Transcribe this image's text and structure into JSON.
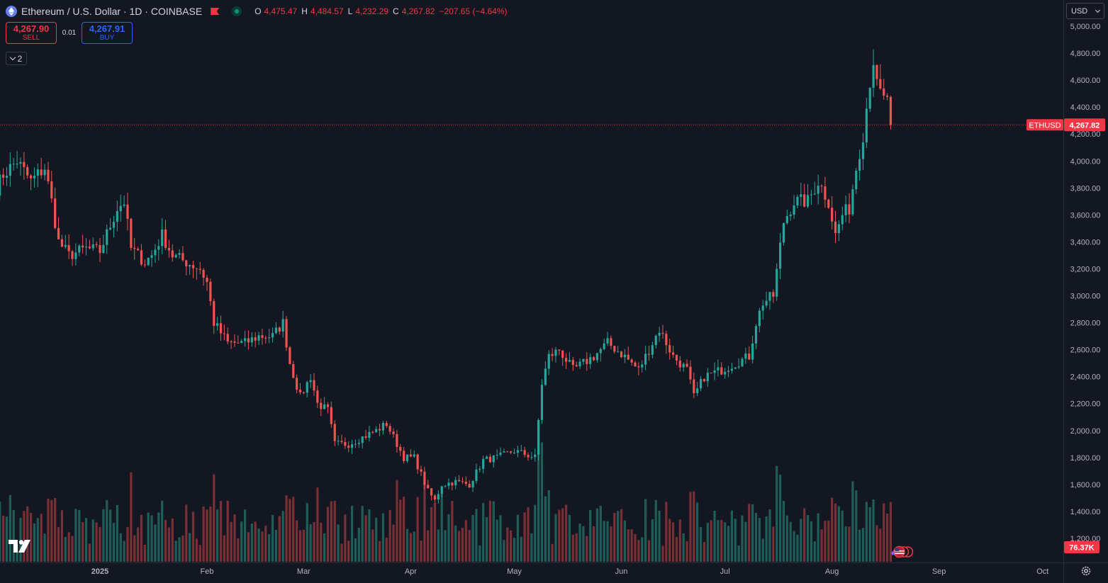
{
  "header": {
    "title": "Ethereum / U.S. Dollar · 1D · COINBASE",
    "symbol_icon": "ethereum-icon",
    "ohlc": [
      {
        "key": "O",
        "value": "4,475.47"
      },
      {
        "key": "H",
        "value": "4,484.57"
      },
      {
        "key": "L",
        "value": "4,232.29"
      },
      {
        "key": "C",
        "value": "4,267.82"
      }
    ],
    "change": "−207.65 (−4.64%)"
  },
  "trade": {
    "sell_price": "4,267.90",
    "sell_label": "SELL",
    "spread": "0.01",
    "buy_price": "4,267.91",
    "buy_label": "BUY"
  },
  "indicators_toggle": "2",
  "currency": "USD",
  "colors": {
    "background": "#131722",
    "up": "#26a69a",
    "down": "#ef5350",
    "up_volume": "#1f5e58",
    "down_volume": "#7a2f35",
    "grid": "#1e222d",
    "text": "#b2b5be"
  },
  "chart_data": {
    "type": "candlestick",
    "title": "Ethereum / U.S. Dollar · 1D · COINBASE",
    "series_name": "ETHUSD",
    "last_price_label": "ETHUSD",
    "last_price": 4267.82,
    "last_price_text": "4,267.82",
    "volume_label": "76.37K",
    "y_scale": "linear",
    "ylim": [
      1050,
      5000
    ],
    "grid": false,
    "y_ticks": [
      "5,000.00",
      "4,800.00",
      "4,600.00",
      "4,400.00",
      "4,200.00",
      "4,000.00",
      "3,800.00",
      "3,600.00",
      "3,400.00",
      "3,200.00",
      "3,000.00",
      "2,800.00",
      "2,600.00",
      "2,400.00",
      "2,200.00",
      "2,000.00",
      "1,800.00",
      "1,600.00",
      "1,400.00",
      "1,200.00"
    ],
    "x_ticks": [
      {
        "label": "2025",
        "date": "2025-01-01"
      },
      {
        "label": "Feb",
        "date": "2025-02-01"
      },
      {
        "label": "Mar",
        "date": "2025-03-01"
      },
      {
        "label": "Apr",
        "date": "2025-04-01"
      },
      {
        "label": "May",
        "date": "2025-05-01"
      },
      {
        "label": "Jun",
        "date": "2025-06-01"
      },
      {
        "label": "Jul",
        "date": "2025-07-01"
      },
      {
        "label": "Aug",
        "date": "2025-08-01"
      },
      {
        "label": "Sep",
        "date": "2025-09-01"
      },
      {
        "label": "Oct",
        "date": "2025-10-01"
      }
    ],
    "close_anchors": [
      [
        "2024-12-01",
        3750
      ],
      [
        "2024-12-04",
        3900
      ],
      [
        "2024-12-08",
        4000
      ],
      [
        "2024-12-12",
        3850
      ],
      [
        "2024-12-16",
        3950
      ],
      [
        "2024-12-18",
        3700
      ],
      [
        "2024-12-20",
        3400
      ],
      [
        "2024-12-23",
        3300
      ],
      [
        "2024-12-28",
        3350
      ],
      [
        "2025-01-01",
        3330
      ],
      [
        "2025-01-06",
        3650
      ],
      [
        "2025-01-08",
        3700
      ],
      [
        "2025-01-10",
        3350
      ],
      [
        "2025-01-14",
        3250
      ],
      [
        "2025-01-16",
        3300
      ],
      [
        "2025-01-19",
        3450
      ],
      [
        "2025-01-22",
        3300
      ],
      [
        "2025-01-26",
        3250
      ],
      [
        "2025-01-30",
        3200
      ],
      [
        "2025-02-01",
        3100
      ],
      [
        "2025-02-03",
        2800
      ],
      [
        "2025-02-07",
        2650
      ],
      [
        "2025-02-12",
        2650
      ],
      [
        "2025-02-16",
        2700
      ],
      [
        "2025-02-20",
        2700
      ],
      [
        "2025-02-23",
        2800
      ],
      [
        "2025-02-25",
        2500
      ],
      [
        "2025-02-28",
        2250
      ],
      [
        "2025-03-03",
        2400
      ],
      [
        "2025-03-05",
        2200
      ],
      [
        "2025-03-08",
        2150
      ],
      [
        "2025-03-10",
        1900
      ],
      [
        "2025-03-14",
        1900
      ],
      [
        "2025-03-18",
        1950
      ],
      [
        "2025-03-22",
        2000
      ],
      [
        "2025-03-25",
        2050
      ],
      [
        "2025-03-28",
        1900
      ],
      [
        "2025-03-30",
        1800
      ],
      [
        "2025-04-02",
        1800
      ],
      [
        "2025-04-06",
        1550
      ],
      [
        "2025-04-08",
        1480
      ],
      [
        "2025-04-10",
        1600
      ],
      [
        "2025-04-14",
        1620
      ],
      [
        "2025-04-18",
        1600
      ],
      [
        "2025-04-22",
        1780
      ],
      [
        "2025-04-26",
        1800
      ],
      [
        "2025-05-01",
        1850
      ],
      [
        "2025-05-07",
        1800
      ],
      [
        "2025-05-09",
        2350
      ],
      [
        "2025-05-11",
        2550
      ],
      [
        "2025-05-14",
        2600
      ],
      [
        "2025-05-18",
        2450
      ],
      [
        "2025-05-24",
        2550
      ],
      [
        "2025-05-28",
        2650
      ],
      [
        "2025-06-02",
        2550
      ],
      [
        "2025-06-06",
        2450
      ],
      [
        "2025-06-10",
        2650
      ],
      [
        "2025-06-12",
        2750
      ],
      [
        "2025-06-16",
        2550
      ],
      [
        "2025-06-20",
        2450
      ],
      [
        "2025-06-22",
        2250
      ],
      [
        "2025-06-25",
        2400
      ],
      [
        "2025-06-30",
        2450
      ],
      [
        "2025-07-04",
        2500
      ],
      [
        "2025-07-08",
        2550
      ],
      [
        "2025-07-10",
        2800
      ],
      [
        "2025-07-12",
        2950
      ],
      [
        "2025-07-15",
        3000
      ],
      [
        "2025-07-18",
        3550
      ],
      [
        "2025-07-21",
        3700
      ],
      [
        "2025-07-25",
        3700
      ],
      [
        "2025-07-28",
        3850
      ],
      [
        "2025-07-31",
        3700
      ],
      [
        "2025-08-02",
        3450
      ],
      [
        "2025-08-04",
        3600
      ],
      [
        "2025-08-06",
        3650
      ],
      [
        "2025-08-08",
        3950
      ],
      [
        "2025-08-10",
        4200
      ],
      [
        "2025-08-12",
        4600
      ],
      [
        "2025-08-13",
        4750
      ],
      [
        "2025-08-14",
        4550
      ],
      [
        "2025-08-16",
        4450
      ],
      [
        "2025-08-17",
        4475.47
      ],
      [
        "2025-08-18",
        4267.82
      ]
    ],
    "events_icon": "us-flag-icon"
  }
}
